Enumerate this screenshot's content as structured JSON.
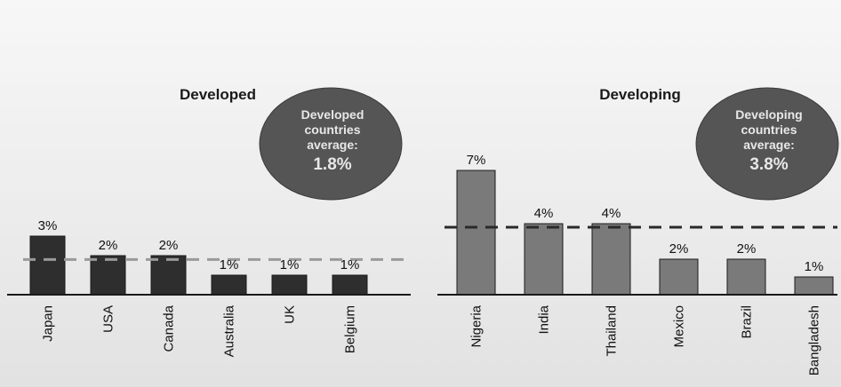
{
  "chart_data": [
    {
      "type": "bar",
      "title": "Developed",
      "categories": [
        "Japan",
        "USA",
        "Canada",
        "Australia",
        "UK",
        "Belgium"
      ],
      "values": [
        3,
        2,
        2,
        1,
        1,
        1
      ],
      "value_labels": [
        "3%",
        "2%",
        "2%",
        "1%",
        "1%",
        "1%"
      ],
      "average": 1.8,
      "average_bubble": [
        "Developed",
        "countries",
        "average:",
        "1.8%"
      ],
      "bar_color": "#2e2e2e",
      "average_line_color": "#9a9a9a",
      "ylim": [
        0,
        7.5
      ]
    },
    {
      "type": "bar",
      "title": "Developing",
      "categories": [
        "Nigeria",
        "India",
        "Thailand",
        "Mexico",
        "Brazil",
        "Bangladesh"
      ],
      "values": [
        7,
        4,
        4,
        2,
        2,
        1
      ],
      "value_labels": [
        "7%",
        "4%",
        "4%",
        "2%",
        "2%",
        "1%"
      ],
      "average": 3.8,
      "average_bubble": [
        "Developing",
        "countries",
        "average:",
        "3.8%"
      ],
      "bar_color": "#7a7a7a",
      "average_line_color": "#2a2a2a",
      "ylim": [
        0,
        7.5
      ]
    }
  ],
  "colors": {
    "bubble_fill": "#555555",
    "bubble_text": "#e8e8e8",
    "axis_color": "#1a1a1a"
  }
}
